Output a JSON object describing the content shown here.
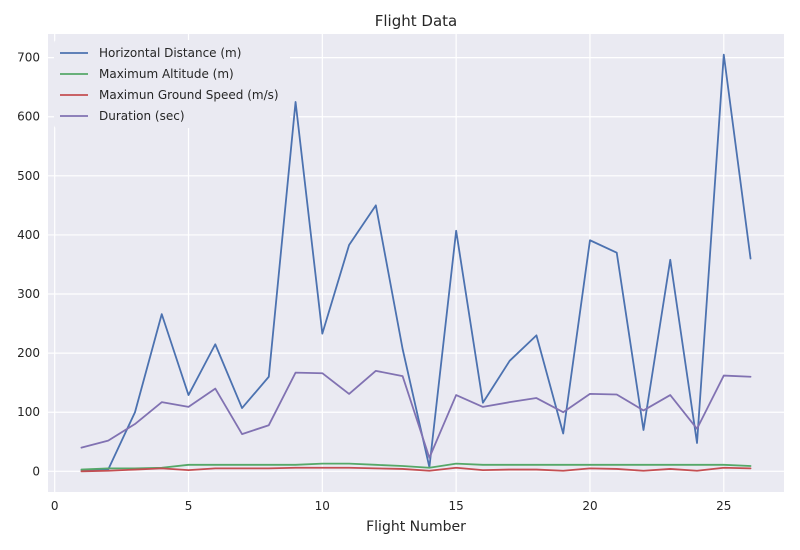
{
  "chart_data": {
    "type": "line",
    "title": "Flight Data",
    "xlabel": "Flight Number",
    "ylabel": "",
    "xlim": [
      -0.25,
      27.25
    ],
    "ylim": [
      -35,
      740
    ],
    "xticks": [
      0,
      5,
      10,
      15,
      20,
      25
    ],
    "yticks": [
      0,
      100,
      200,
      300,
      400,
      500,
      600,
      700
    ],
    "grid": true,
    "legend_position": "top-left",
    "x": [
      1,
      2,
      3,
      4,
      5,
      6,
      7,
      8,
      9,
      10,
      11,
      12,
      13,
      14,
      15,
      16,
      17,
      18,
      19,
      20,
      21,
      22,
      23,
      24,
      25,
      26
    ],
    "series": [
      {
        "name": "Horizontal Distance (m)",
        "color": "#4c72b0",
        "values": [
          2,
          3,
          100,
          266,
          129,
          215,
          107,
          160,
          625,
          233,
          383,
          450,
          207,
          7,
          407,
          116,
          187,
          230,
          64,
          391,
          370,
          70,
          358,
          48,
          705,
          360
        ]
      },
      {
        "name": "Maximum Altitude (m)",
        "color": "#55a868",
        "values": [
          3,
          5,
          5,
          6,
          11,
          11,
          11,
          11,
          11,
          13,
          13,
          11,
          9,
          6,
          13,
          11,
          11,
          11,
          11,
          11,
          11,
          11,
          11,
          11,
          11,
          9
        ]
      },
      {
        "name": "Maximun Ground Speed (m/s)",
        "color": "#c44e52",
        "values": [
          0,
          1,
          3,
          5,
          2,
          5,
          5,
          5,
          6,
          6,
          6,
          5,
          4,
          1,
          6,
          2,
          3,
          3,
          1,
          5,
          4,
          1,
          4,
          1,
          6,
          5
        ]
      },
      {
        "name": "Duration (sec)",
        "color": "#8172b2",
        "values": [
          40,
          52,
          80,
          117,
          109,
          140,
          63,
          78,
          167,
          166,
          131,
          170,
          161,
          23,
          129,
          109,
          117,
          124,
          100,
          131,
          130,
          103,
          129,
          72,
          162,
          160
        ]
      }
    ]
  }
}
